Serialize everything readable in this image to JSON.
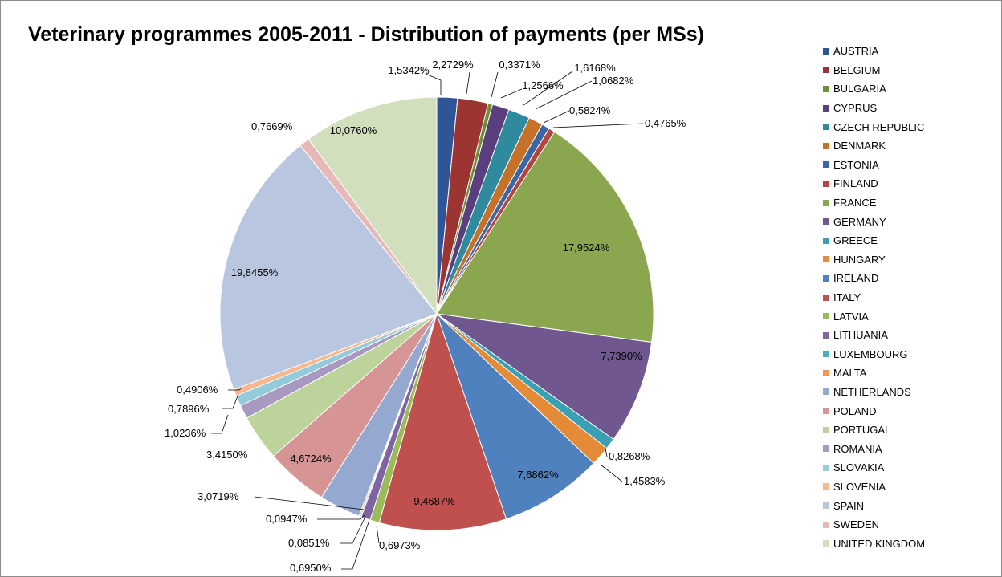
{
  "chart_data": {
    "type": "pie",
    "title": "Veterinary programmes 2005-2011 - Distribution of payments (per MSs)",
    "legend_position": "right",
    "start_angle": "12 o'clock, clockwise",
    "slices": [
      {
        "name": "AUSTRIA",
        "value": 1.5342,
        "label": "1,5342%",
        "color": "#2f5597"
      },
      {
        "name": "BELGIUM",
        "value": 2.2729,
        "label": "2,2729%",
        "color": "#9c3531"
      },
      {
        "name": "BULGARIA",
        "value": 0.3371,
        "label": "0,3371%",
        "color": "#6f9135"
      },
      {
        "name": "CYPRUS",
        "value": 1.2566,
        "label": "1,2566%",
        "color": "#5a3f7e"
      },
      {
        "name": "CZECH REPUBLIC",
        "value": 1.6168,
        "label": "1,6168%",
        "color": "#2f8a9e"
      },
      {
        "name": "DENMARK",
        "value": 1.0682,
        "label": "1,0682%",
        "color": "#c7702a"
      },
      {
        "name": "ESTONIA",
        "value": 0.5824,
        "label": "0,5824%",
        "color": "#3a66a8"
      },
      {
        "name": "FINLAND",
        "value": 0.4765,
        "label": "0,4765%",
        "color": "#b6433d"
      },
      {
        "name": "FRANCE",
        "value": 17.9524,
        "label": "17,9524%",
        "color": "#8aa64e"
      },
      {
        "name": "GERMANY",
        "value": 7.739,
        "label": "7,7390%",
        "color": "#715790"
      },
      {
        "name": "GREECE",
        "value": 0.8268,
        "label": "0,8268%",
        "color": "#3aa0b5"
      },
      {
        "name": "HUNGARY",
        "value": 1.4583,
        "label": "1,4583%",
        "color": "#e58a36"
      },
      {
        "name": "IRELAND",
        "value": 7.6862,
        "label": "7,6862%",
        "color": "#4e81bd"
      },
      {
        "name": "ITALY",
        "value": 9.4687,
        "label": "9,4687%",
        "color": "#c0504d"
      },
      {
        "name": "LATVIA",
        "value": 0.6973,
        "label": "0,6973%",
        "color": "#9bbb59"
      },
      {
        "name": "LITHUANIA",
        "value": 0.695,
        "label": "0,6950%",
        "color": "#8064a2"
      },
      {
        "name": "LUXEMBOURG",
        "value": 0.0851,
        "label": "0,0851%",
        "color": "#4bacc6"
      },
      {
        "name": "MALTA",
        "value": 0.0947,
        "label": "0,0947%",
        "color": "#f79646"
      },
      {
        "name": "NETHERLANDS",
        "value": 3.0719,
        "label": "3,0719%",
        "color": "#95a9d0"
      },
      {
        "name": "POLAND",
        "value": 4.6724,
        "label": "4,6724%",
        "color": "#d69594"
      },
      {
        "name": "PORTUGAL",
        "value": 3.415,
        "label": "3,4150%",
        "color": "#bcd49c"
      },
      {
        "name": "ROMANIA",
        "value": 1.0236,
        "label": "1,0236%",
        "color": "#a899c0"
      },
      {
        "name": "SLOVAKIA",
        "value": 0.7896,
        "label": "0,7896%",
        "color": "#94cbdb"
      },
      {
        "name": "SLOVENIA",
        "value": 0.4906,
        "label": "0,4906%",
        "color": "#f9b78f"
      },
      {
        "name": "SPAIN",
        "value": 19.8455,
        "label": "19,8455%",
        "color": "#b9c6e0"
      },
      {
        "name": "SWEDEN",
        "value": 0.7669,
        "label": "0,7669%",
        "color": "#e6b9b8"
      },
      {
        "name": "UNITED KINGDOM",
        "value": 10.076,
        "label": "10,0760%",
        "color": "#d1dfbd"
      }
    ]
  }
}
